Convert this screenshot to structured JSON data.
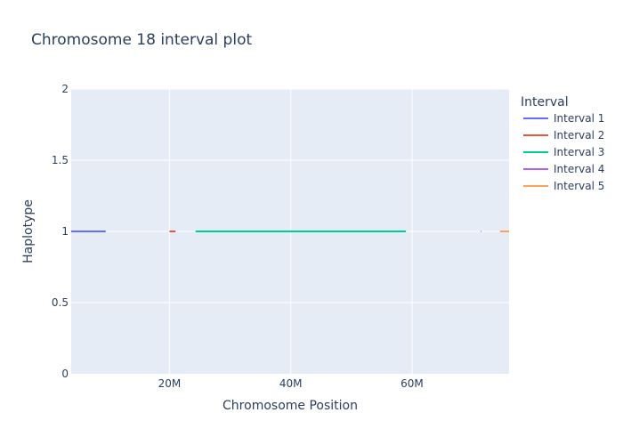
{
  "chart_data": {
    "type": "line",
    "title": "Chromosome 18 interval plot",
    "xlabel": "Chromosome Position",
    "ylabel": "Haplotype",
    "xlim": [
      3800000,
      76000000
    ],
    "ylim": [
      0,
      2
    ],
    "x_ticks": [
      {
        "value": 20000000,
        "label": "20M"
      },
      {
        "value": 40000000,
        "label": "40M"
      },
      {
        "value": 60000000,
        "label": "60M"
      }
    ],
    "y_ticks": [
      {
        "value": 0,
        "label": "0"
      },
      {
        "value": 0.5,
        "label": "0.5"
      },
      {
        "value": 1,
        "label": "1"
      },
      {
        "value": 1.5,
        "label": "1.5"
      },
      {
        "value": 2,
        "label": "2"
      }
    ],
    "grid": true,
    "legend": {
      "title": "Interval",
      "placement": "right"
    },
    "series": [
      {
        "name": "Interval 1",
        "color": "#636efa",
        "x": [
          3800000,
          9500000
        ],
        "y": [
          1,
          1
        ]
      },
      {
        "name": "Interval 2",
        "color": "#ef553b",
        "x": [
          20000000,
          21000000
        ],
        "y": [
          1,
          1
        ]
      },
      {
        "name": "Interval 3",
        "color": "#00cc96",
        "x": [
          24300000,
          59000000
        ],
        "y": [
          1,
          1
        ]
      },
      {
        "name": "Interval 4",
        "color": "#ab63fa",
        "x": [
          71300000,
          71400000
        ],
        "y": [
          1,
          1
        ]
      },
      {
        "name": "Interval 5",
        "color": "#ffa15a",
        "x": [
          74500000,
          76000000
        ],
        "y": [
          1,
          1
        ]
      }
    ]
  }
}
